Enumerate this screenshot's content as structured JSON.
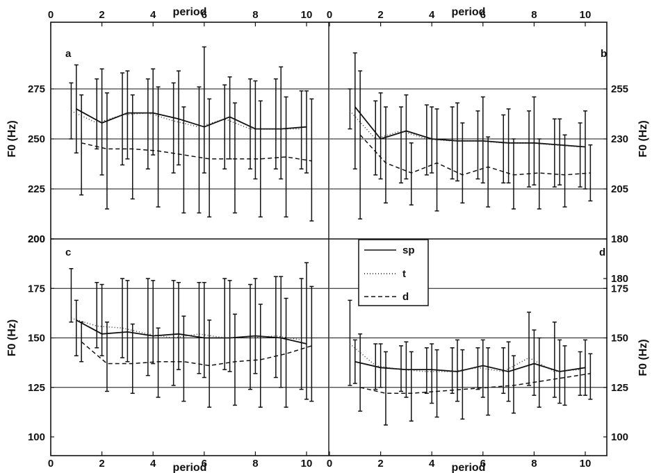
{
  "chart_data": [
    {
      "panel": "a",
      "type": "line",
      "xlabel": "period",
      "ylabel": "F0 (Hz)",
      "xlim": [
        0,
        11
      ],
      "ylim": [
        200,
        300
      ],
      "xticks": [
        0,
        2,
        4,
        6,
        8,
        10
      ],
      "yticks": [
        200,
        225,
        250,
        275
      ],
      "hlines": [
        225,
        250,
        275
      ],
      "series": [
        {
          "name": "sp",
          "style": "solid",
          "x": [
            1,
            2,
            3,
            4,
            5,
            6,
            7,
            8,
            9,
            10
          ],
          "y": [
            265,
            258,
            263,
            263,
            260,
            256,
            261,
            255,
            255,
            256
          ],
          "err_low": [
            243,
            232,
            240,
            242,
            237,
            233,
            240,
            230,
            230,
            233
          ],
          "err_high": [
            287,
            285,
            284,
            285,
            284,
            296,
            281,
            279,
            286,
            274
          ]
        },
        {
          "name": "t",
          "style": "dotted",
          "x": [
            0.8,
            1.8,
            2.8,
            3.8,
            4.8,
            5.8,
            6.8,
            7.8,
            8.8,
            9.8
          ],
          "y": [
            264,
            258,
            262,
            263,
            259,
            256,
            260,
            255,
            255,
            255
          ],
          "err_low": [
            250,
            245,
            237,
            235,
            233,
            213,
            235,
            235,
            235,
            235
          ],
          "err_high": [
            278,
            280,
            283,
            280,
            278,
            276,
            277,
            280,
            280,
            274
          ]
        },
        {
          "name": "d",
          "style": "dashed",
          "x": [
            1.2,
            2.2,
            3.2,
            4.2,
            5.2,
            6.2,
            7.2,
            8.2,
            9.2,
            10.2
          ],
          "y": [
            248,
            245,
            245,
            244,
            242,
            240,
            240,
            240,
            241,
            239
          ],
          "err_low": [
            222,
            215,
            220,
            216,
            213,
            211,
            213,
            211,
            211,
            209
          ],
          "err_high": [
            272,
            273,
            272,
            276,
            266,
            270,
            268,
            269,
            271,
            270
          ]
        }
      ]
    },
    {
      "panel": "b",
      "type": "line",
      "xlabel": "period",
      "ylabel": "F0 (Hz)",
      "xlim": [
        0,
        11
      ],
      "ylim": [
        180,
        280
      ],
      "xticks": [
        0,
        2,
        4,
        6,
        8,
        10
      ],
      "yticks": [
        180,
        205,
        230,
        255
      ],
      "hlines": [
        205,
        230,
        255
      ],
      "series": [
        {
          "name": "sp",
          "style": "solid",
          "x": [
            1,
            2,
            3,
            4,
            5,
            6,
            7,
            8,
            9,
            10
          ],
          "y": [
            246,
            230,
            234,
            230,
            229,
            229,
            228,
            228,
            227,
            226
          ],
          "err_low": [
            215,
            210,
            210,
            213,
            209,
            208,
            208,
            207,
            207,
            205
          ],
          "err_high": [
            273,
            253,
            252,
            246,
            248,
            251,
            245,
            251,
            240,
            244
          ]
        },
        {
          "name": "t",
          "style": "dotted",
          "x": [
            0.8,
            1.8,
            2.8,
            3.8,
            4.8,
            5.8,
            6.8,
            7.8,
            8.8,
            9.8
          ],
          "y": [
            244,
            230,
            234,
            230,
            229,
            229,
            228,
            228,
            227,
            226
          ],
          "err_low": [
            235,
            212,
            208,
            212,
            210,
            210,
            208,
            206,
            206,
            206
          ],
          "err_high": [
            255,
            249,
            246,
            247,
            246,
            244,
            242,
            244,
            240,
            238
          ]
        },
        {
          "name": "d",
          "style": "dashed",
          "x": [
            1.2,
            2.2,
            3.2,
            4.2,
            5.2,
            6.2,
            7.2,
            8.2,
            9.2,
            10.2
          ],
          "y": [
            232,
            218,
            213,
            218,
            212,
            216,
            212,
            213,
            212,
            213
          ],
          "err_low": [
            190,
            198,
            197,
            194,
            198,
            196,
            195,
            195,
            196,
            199
          ],
          "err_high": [
            264,
            246,
            228,
            245,
            238,
            231,
            230,
            230,
            232,
            227
          ]
        }
      ]
    },
    {
      "panel": "c",
      "type": "line",
      "xlabel": "period",
      "ylabel": "F0 (Hz)",
      "xlim": [
        0,
        11
      ],
      "ylim": [
        100,
        200
      ],
      "xticks": [
        0,
        2,
        4,
        6,
        8,
        10
      ],
      "yticks": [
        100,
        125,
        150,
        175,
        200
      ],
      "hlines": [
        125,
        150,
        175
      ],
      "series": [
        {
          "name": "sp",
          "style": "solid",
          "x": [
            1,
            2,
            3,
            4,
            5,
            6,
            7,
            8,
            9,
            10
          ],
          "y": [
            159,
            152,
            153,
            151,
            152,
            150,
            150,
            151,
            150,
            147
          ],
          "err_low": [
            141,
            141,
            138,
            137,
            134,
            130,
            133,
            132,
            125,
            119
          ],
          "err_high": [
            169,
            177,
            179,
            179,
            178,
            178,
            179,
            180,
            181,
            188
          ]
        },
        {
          "name": "t",
          "style": "dotted",
          "x": [
            0.8,
            1.8,
            2.8,
            3.8,
            4.8,
            5.8,
            6.8,
            7.8,
            8.8,
            9.8
          ],
          "y": [
            160,
            156,
            155,
            152,
            150,
            152,
            150,
            150,
            151,
            149
          ],
          "err_low": [
            158,
            145,
            140,
            131,
            126,
            132,
            134,
            124,
            130,
            124
          ],
          "err_high": [
            185,
            178,
            180,
            180,
            179,
            178,
            180,
            177,
            181,
            180
          ]
        },
        {
          "name": "d",
          "style": "dashed",
          "x": [
            1.2,
            2.2,
            3.2,
            4.2,
            5.2,
            6.2,
            7.2,
            8.2,
            9.2,
            10.2
          ],
          "y": [
            148,
            137,
            137,
            138,
            138,
            136,
            138,
            139,
            142,
            146
          ],
          "err_low": [
            138,
            123,
            122,
            120,
            118,
            115,
            116,
            115,
            115,
            118
          ],
          "err_high": [
            158,
            158,
            157,
            155,
            161,
            159,
            162,
            167,
            170,
            176
          ]
        }
      ]
    },
    {
      "panel": "d",
      "type": "line",
      "xlabel": "period",
      "ylabel": "F0 (Hz)",
      "xlim": [
        0,
        11
      ],
      "ylim": [
        100,
        180
      ],
      "xticks": [
        0,
        2,
        4,
        6,
        8,
        10
      ],
      "yticks": [
        100,
        125,
        150,
        175,
        180
      ],
      "hlines": [
        125,
        150,
        175
      ],
      "series": [
        {
          "name": "sp",
          "style": "solid",
          "x": [
            1,
            2,
            3,
            4,
            5,
            6,
            7,
            8,
            9,
            10
          ],
          "y": [
            138,
            135,
            134,
            134,
            133,
            136,
            133,
            137,
            133,
            135
          ],
          "err_low": [
            127,
            125,
            120,
            117,
            118,
            120,
            118,
            121,
            117,
            121
          ],
          "err_high": [
            149,
            147,
            148,
            147,
            149,
            149,
            148,
            154,
            149,
            149
          ]
        },
        {
          "name": "t",
          "style": "dotted",
          "x": [
            0.8,
            1.8,
            2.8,
            3.8,
            4.8,
            5.8,
            6.8,
            7.8,
            8.8,
            9.8
          ],
          "y": [
            147,
            136,
            134,
            133,
            133,
            135,
            133,
            140,
            133,
            134
          ],
          "err_low": [
            126,
            124,
            123,
            122,
            122,
            124,
            122,
            126,
            120,
            121
          ],
          "err_high": [
            169,
            147,
            146,
            145,
            145,
            145,
            145,
            163,
            158,
            143
          ]
        },
        {
          "name": "d",
          "style": "dashed",
          "x": [
            1.2,
            2.2,
            3.2,
            4.2,
            5.2,
            6.2,
            7.2,
            8.2,
            9.2,
            10.2
          ],
          "y": [
            125,
            122,
            122,
            123,
            124,
            125,
            126,
            128,
            130,
            132
          ],
          "err_low": [
            113,
            106,
            108,
            110,
            109,
            111,
            112,
            115,
            116,
            119
          ],
          "err_high": [
            152,
            143,
            143,
            144,
            144,
            145,
            141,
            150,
            146,
            142
          ]
        }
      ]
    }
  ],
  "legend": {
    "entries": [
      {
        "label": "sp",
        "style": "solid"
      },
      {
        "label": "t",
        "style": "dotted"
      },
      {
        "label": "d",
        "style": "dashed"
      }
    ]
  }
}
